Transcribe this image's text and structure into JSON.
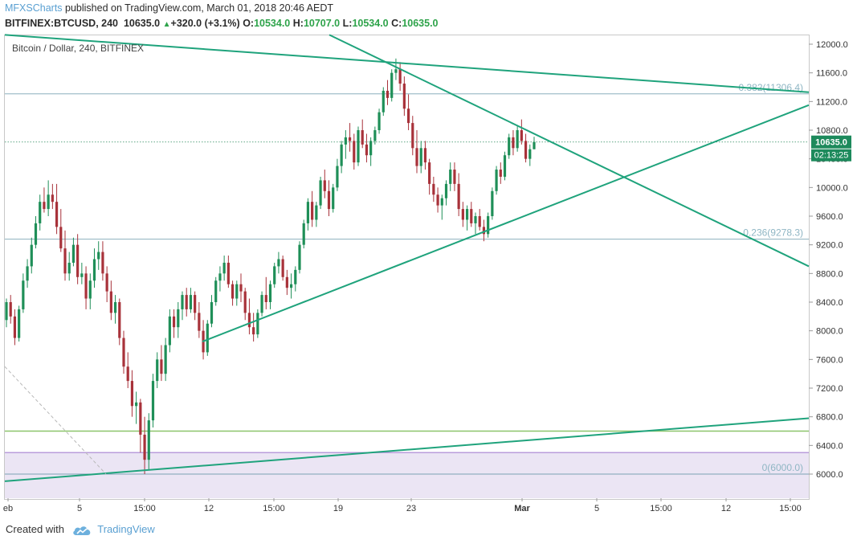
{
  "header": {
    "brand": "MFXSCharts",
    "published": " published on TradingView.com, March 01, 2018 20:46 AEDT",
    "symbol": "BITFINEX:BTCUSD, 240",
    "last": "10635.0",
    "change": "+320.0 (+3.1%)",
    "open_label": "O:",
    "open": "10534.0",
    "high_label": "H:",
    "high": "10707.0",
    "low_label": "L:",
    "low": "10534.0",
    "close_label": "C:",
    "close": "10635.0"
  },
  "chart_title": "Bitcoin / Dollar, 240, BITFINEX",
  "footer": {
    "created_with": "Created with",
    "brand": "TradingView"
  },
  "colors": {
    "up_candle": "#1f8f58",
    "down_candle": "#a8323a",
    "trendline": "#1fa37c",
    "fib_line": "#7ba3b3",
    "green_level": "#8cc56b",
    "purple_zone": "#ebe5f4",
    "purple_edge": "#b99cdb",
    "price_tag": "#1d8a5c"
  },
  "chart_data": {
    "type": "candlestick",
    "title": "Bitcoin / Dollar, 240, BITFINEX",
    "symbol": "BTCUSD",
    "timeframe": "240",
    "exchange": "BITFINEX",
    "ylim": [
      5700,
      12200
    ],
    "y_ticks": [
      "12000.0",
      "11600.0",
      "11200.0",
      "10800.0",
      "10400.0",
      "10000.0",
      "9600.0",
      "9200.0",
      "8800.0",
      "8400.0",
      "8000.0",
      "7600.0",
      "7200.0",
      "6800.0",
      "6400.0",
      "6000.0"
    ],
    "x_ticks": [
      "eb",
      "5",
      "15:00",
      "12",
      "15:00",
      "19",
      "23",
      "Mar",
      "5",
      "15:00",
      "12",
      "15:00"
    ],
    "current_price": "10635.0",
    "countdown": "02:13:25",
    "fib_levels": [
      {
        "label": "0.382(11306.4)",
        "price": 11306.4
      },
      {
        "label": "0.236(9278.3)",
        "price": 9278.3
      },
      {
        "label": "0(6000.0)",
        "price": 6000.0
      }
    ],
    "horizontal_levels": [
      6600,
      6300
    ],
    "purple_zone": [
      5800,
      6300
    ],
    "candles_ohlc": [
      [
        8150,
        8450,
        8050,
        8400
      ],
      [
        8400,
        8500,
        8100,
        8200
      ],
      [
        8200,
        8300,
        7800,
        7900
      ],
      [
        7900,
        8350,
        7850,
        8300
      ],
      [
        8300,
        8800,
        8250,
        8700
      ],
      [
        8700,
        9000,
        8600,
        8900
      ],
      [
        8900,
        9300,
        8800,
        9200
      ],
      [
        9200,
        9600,
        9150,
        9500
      ],
      [
        9500,
        9900,
        9400,
        9800
      ],
      [
        9800,
        10000,
        9650,
        9700
      ],
      [
        9700,
        10100,
        9600,
        9900
      ],
      [
        9900,
        10050,
        9700,
        9800
      ],
      [
        9800,
        10050,
        9350,
        9450
      ],
      [
        9450,
        9700,
        9100,
        9150
      ],
      [
        9150,
        9400,
        8700,
        8800
      ],
      [
        8800,
        9100,
        8700,
        8950
      ],
      [
        8950,
        9300,
        8900,
        9200
      ],
      [
        9200,
        9350,
        8650,
        8750
      ],
      [
        8750,
        8950,
        8650,
        8800
      ],
      [
        8800,
        8900,
        8300,
        8450
      ],
      [
        8450,
        8800,
        8300,
        8700
      ],
      [
        8700,
        9150,
        8600,
        9000
      ],
      [
        9000,
        9250,
        8850,
        9100
      ],
      [
        9100,
        9250,
        8700,
        8800
      ],
      [
        8800,
        8900,
        8400,
        8550
      ],
      [
        8550,
        8700,
        8150,
        8250
      ],
      [
        8250,
        8500,
        8100,
        8400
      ],
      [
        8400,
        8450,
        7800,
        7900
      ],
      [
        7900,
        8000,
        7400,
        7500
      ],
      [
        7500,
        7700,
        7200,
        7300
      ],
      [
        7300,
        7450,
        6800,
        6950
      ],
      [
        6950,
        7150,
        6700,
        7000
      ],
      [
        7000,
        7050,
        6300,
        6550
      ],
      [
        6550,
        6800,
        6000,
        6200
      ],
      [
        6200,
        6850,
        6050,
        6750
      ],
      [
        6750,
        7400,
        6650,
        7300
      ],
      [
        7300,
        7700,
        7200,
        7600
      ],
      [
        7600,
        7800,
        7300,
        7400
      ],
      [
        7400,
        7900,
        7300,
        7800
      ],
      [
        7800,
        8300,
        7700,
        8200
      ],
      [
        8200,
        8300,
        7900,
        8050
      ],
      [
        8050,
        8400,
        7900,
        8300
      ],
      [
        8300,
        8550,
        8150,
        8500
      ],
      [
        8500,
        8600,
        8200,
        8300
      ],
      [
        8300,
        8600,
        8250,
        8500
      ],
      [
        8500,
        8550,
        8150,
        8250
      ],
      [
        8250,
        8400,
        7900,
        8000
      ],
      [
        8000,
        8150,
        7600,
        7700
      ],
      [
        7700,
        8150,
        7650,
        8100
      ],
      [
        8100,
        8500,
        8050,
        8400
      ],
      [
        8400,
        8750,
        8350,
        8700
      ],
      [
        8700,
        8900,
        8550,
        8800
      ],
      [
        8800,
        9050,
        8700,
        8950
      ],
      [
        8950,
        9050,
        8600,
        8650
      ],
      [
        8650,
        8700,
        8350,
        8450
      ],
      [
        8450,
        8700,
        8350,
        8650
      ],
      [
        8650,
        8800,
        8400,
        8550
      ],
      [
        8550,
        8600,
        8150,
        8250
      ],
      [
        8250,
        8450,
        7950,
        8050
      ],
      [
        8050,
        8250,
        7850,
        7950
      ],
      [
        7950,
        8300,
        7900,
        8250
      ],
      [
        8250,
        8550,
        8200,
        8500
      ],
      [
        8500,
        8750,
        8300,
        8400
      ],
      [
        8400,
        8700,
        8300,
        8650
      ],
      [
        8650,
        8950,
        8600,
        8900
      ],
      [
        8900,
        9100,
        8800,
        9000
      ],
      [
        9000,
        9050,
        8700,
        8750
      ],
      [
        8750,
        8850,
        8500,
        8600
      ],
      [
        8600,
        8800,
        8450,
        8650
      ],
      [
        8650,
        8900,
        8550,
        8850
      ],
      [
        8850,
        9250,
        8800,
        9200
      ],
      [
        9200,
        9550,
        9150,
        9500
      ],
      [
        9500,
        9850,
        9400,
        9800
      ],
      [
        9800,
        9950,
        9450,
        9550
      ],
      [
        9550,
        9800,
        9450,
        9750
      ],
      [
        9750,
        10150,
        9700,
        10100
      ],
      [
        10100,
        10250,
        9850,
        9950
      ],
      [
        9950,
        10100,
        9600,
        9700
      ],
      [
        9700,
        10050,
        9650,
        10000
      ],
      [
        10000,
        10400,
        9950,
        10300
      ],
      [
        10300,
        10650,
        10200,
        10600
      ],
      [
        10600,
        10800,
        10400,
        10700
      ],
      [
        10700,
        10900,
        10500,
        10650
      ],
      [
        10650,
        10750,
        10250,
        10350
      ],
      [
        10350,
        10850,
        10300,
        10800
      ],
      [
        10800,
        10950,
        10550,
        10600
      ],
      [
        10600,
        10750,
        10350,
        10450
      ],
      [
        10450,
        10700,
        10300,
        10650
      ],
      [
        10650,
        10850,
        10600,
        10800
      ],
      [
        10800,
        11100,
        10750,
        11050
      ],
      [
        11050,
        11400,
        11000,
        11350
      ],
      [
        11350,
        11500,
        11150,
        11250
      ],
      [
        11250,
        11650,
        11200,
        11600
      ],
      [
        11600,
        11800,
        11500,
        11650
      ],
      [
        11650,
        11750,
        11350,
        11450
      ],
      [
        11450,
        11550,
        11000,
        11100
      ],
      [
        11100,
        11300,
        10800,
        10900
      ],
      [
        10900,
        11000,
        10450,
        10550
      ],
      [
        10550,
        10800,
        10200,
        10300
      ],
      [
        10300,
        10650,
        10200,
        10550
      ],
      [
        10550,
        10650,
        10250,
        10350
      ],
      [
        10350,
        10400,
        9900,
        10050
      ],
      [
        10050,
        10150,
        9800,
        9900
      ],
      [
        9900,
        10000,
        9650,
        9750
      ],
      [
        9750,
        9900,
        9550,
        9850
      ],
      [
        9850,
        10100,
        9750,
        10050
      ],
      [
        10050,
        10350,
        9950,
        10250
      ],
      [
        10250,
        10350,
        9950,
        10050
      ],
      [
        10050,
        10200,
        9600,
        9700
      ],
      [
        9700,
        9800,
        9450,
        9550
      ],
      [
        9550,
        9750,
        9400,
        9700
      ],
      [
        9700,
        9800,
        9450,
        9500
      ],
      [
        9500,
        9650,
        9350,
        9600
      ],
      [
        9600,
        9700,
        9400,
        9450
      ],
      [
        9450,
        9550,
        9250,
        9350
      ],
      [
        9350,
        9650,
        9300,
        9600
      ],
      [
        9600,
        10000,
        9550,
        9950
      ],
      [
        9950,
        10300,
        9900,
        10250
      ],
      [
        10250,
        10350,
        10050,
        10150
      ],
      [
        10150,
        10500,
        10100,
        10450
      ],
      [
        10450,
        10750,
        10400,
        10700
      ],
      [
        10700,
        10800,
        10450,
        10550
      ],
      [
        10550,
        10850,
        10500,
        10800
      ],
      [
        10800,
        10950,
        10600,
        10650
      ],
      [
        10650,
        10750,
        10350,
        10400
      ],
      [
        10400,
        10600,
        10300,
        10534
      ],
      [
        10534,
        10707,
        10534,
        10635
      ]
    ],
    "trendlines": [
      {
        "from": [
          "2018-02-04",
          12130
        ],
        "to": [
          "2018-03-09",
          11330
        ]
      },
      {
        "from": [
          "2018-02-18 16:00",
          12130
        ],
        "to": [
          "2018-03-09",
          8900
        ]
      },
      {
        "from": [
          "2018-02-11",
          7850
        ],
        "to": [
          "2018-03-09",
          11150
        ]
      },
      {
        "from": [
          "2018-02-04",
          5900
        ],
        "to": [
          "2018-03-09",
          6780
        ]
      }
    ]
  }
}
